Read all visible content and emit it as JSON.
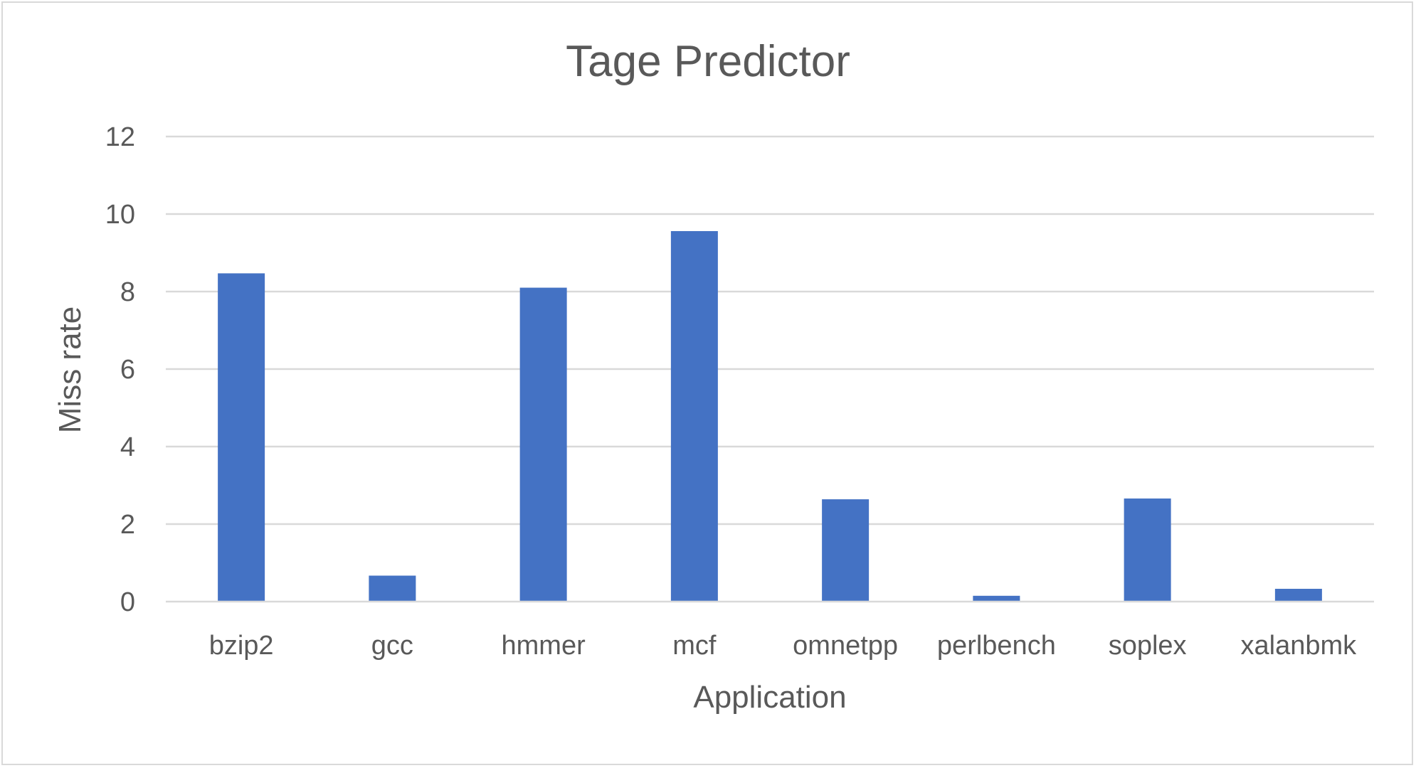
{
  "chart_data": {
    "type": "bar",
    "title": "Tage Predictor",
    "xlabel": "Application",
    "ylabel": "Miss rate",
    "categories": [
      "bzip2",
      "gcc",
      "hmmer",
      "mcf",
      "omnetpp",
      "perlbench",
      "soplex",
      "xalanbmk"
    ],
    "series": [
      {
        "values": [
          8.47,
          0.67,
          8.1,
          9.56,
          2.64,
          0.15,
          2.66,
          0.33
        ]
      }
    ],
    "ylim": [
      0,
      12
    ],
    "yticks": [
      0,
      2,
      4,
      6,
      8,
      10,
      12
    ],
    "grid": true,
    "legend": "none",
    "colors": {
      "bar": "#4472C4",
      "grid": "#d9d9d9",
      "text": "#595959",
      "axis": "#d9d9d9"
    }
  }
}
